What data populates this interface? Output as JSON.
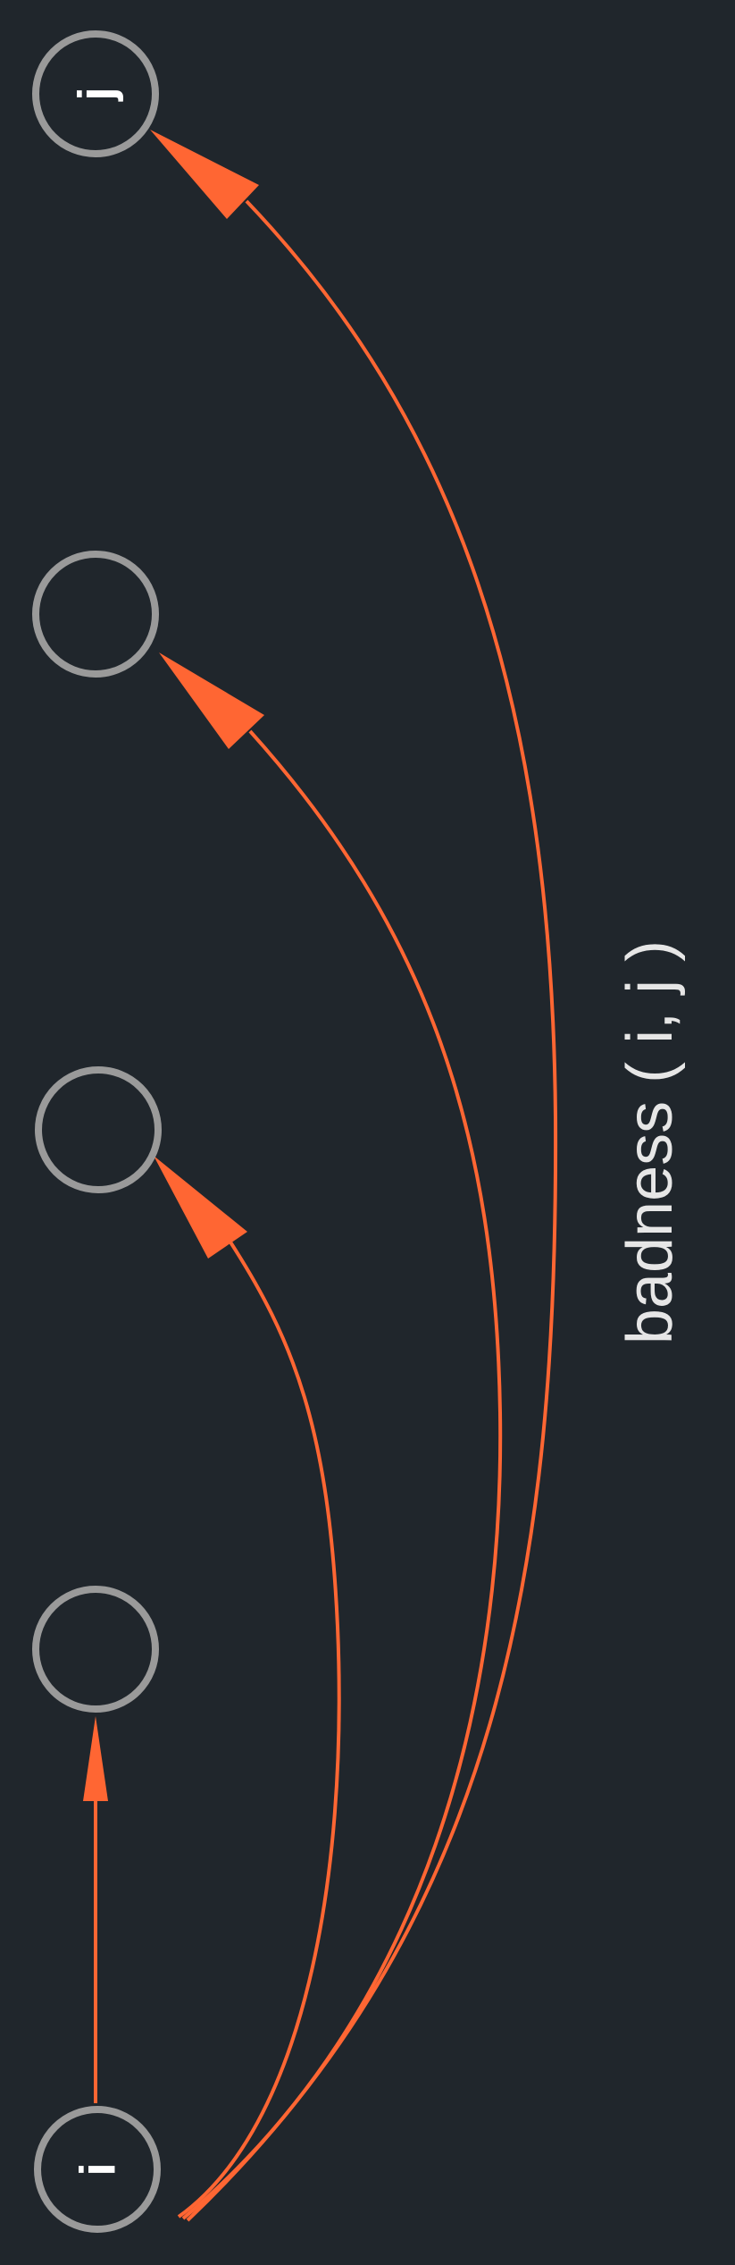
{
  "diagram": {
    "title": "badness ( i, j )",
    "colors": {
      "background": "#20262c",
      "node_stroke": "#9a9a9a",
      "edge": "#ff6633",
      "label": "#ffffff",
      "caption": "#e6e6e6"
    },
    "nodes": [
      {
        "id": "i",
        "label": "i"
      },
      {
        "id": "n1",
        "label": ""
      },
      {
        "id": "n2",
        "label": ""
      },
      {
        "id": "n3",
        "label": ""
      },
      {
        "id": "j",
        "label": "j"
      }
    ],
    "edges": [
      {
        "from": "i",
        "to": "n1"
      },
      {
        "from": "i",
        "to": "n2"
      },
      {
        "from": "i",
        "to": "n3"
      },
      {
        "from": "i",
        "to": "j"
      }
    ]
  }
}
